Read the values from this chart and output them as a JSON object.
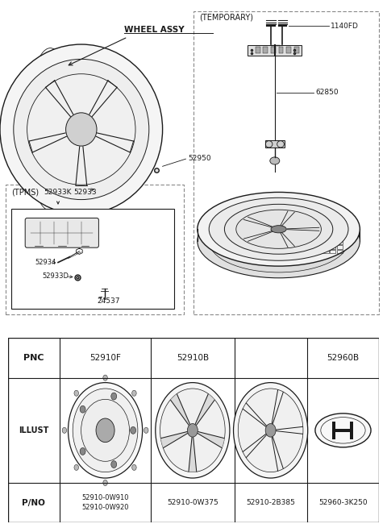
{
  "bg_color": "#ffffff",
  "colors": {
    "line": "#1a1a1a",
    "text": "#1a1a1a",
    "bg": "#ffffff",
    "gray": "#888888",
    "lgray": "#cccccc"
  },
  "table": {
    "pnc_row": [
      "52910F",
      "52910B",
      "52960B"
    ],
    "pno_row": [
      "52910-0W910\n52910-0W920",
      "52910-0W375",
      "52910-2B385",
      "52960-3K250"
    ]
  }
}
